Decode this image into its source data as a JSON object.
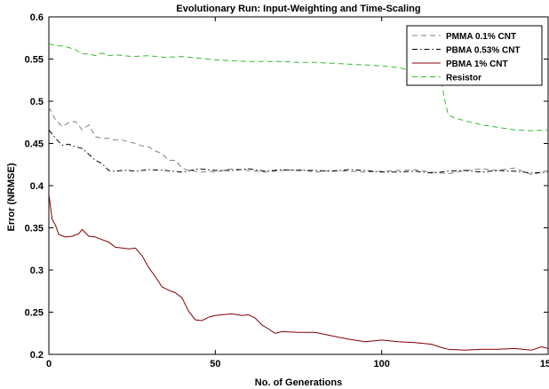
{
  "chart_data": {
    "type": "line",
    "title": "Evolutionary Run: Input-Weighting and Time-Scaling",
    "xlabel": "No. of Generations",
    "ylabel": "Error (NRMSE)",
    "xlim": [
      0,
      150
    ],
    "ylim": [
      0.2,
      0.6
    ],
    "xticks": [
      0,
      50,
      100,
      150
    ],
    "yticks": [
      0.2,
      0.25,
      0.3,
      0.35,
      0.4,
      0.45,
      0.5,
      0.55,
      0.6
    ],
    "xtick_labels": [
      "0",
      "50",
      "100",
      "150"
    ],
    "ytick_labels": [
      "0.2",
      "0.25",
      "0.3",
      "0.35",
      "0.4",
      "0.45",
      "0.5",
      "0.55",
      "0.6"
    ],
    "grid": false,
    "legend_position": "top-right",
    "series": [
      {
        "name": "PMMA 0.1% CNT",
        "color": "#808080",
        "dash": "dashed",
        "x": [
          0,
          2,
          4,
          6,
          8,
          10,
          12,
          14,
          16,
          18,
          20,
          22,
          24,
          26,
          28,
          30,
          32,
          34,
          36,
          38,
          40,
          42,
          44,
          46,
          48,
          50,
          55,
          60,
          65,
          70,
          75,
          80,
          85,
          90,
          95,
          100,
          105,
          110,
          115,
          120,
          125,
          130,
          135,
          140,
          145,
          150
        ],
        "y": [
          0.493,
          0.478,
          0.47,
          0.475,
          0.476,
          0.466,
          0.472,
          0.458,
          0.456,
          0.456,
          0.454,
          0.454,
          0.452,
          0.45,
          0.447,
          0.446,
          0.441,
          0.438,
          0.43,
          0.43,
          0.421,
          0.418,
          0.417,
          0.416,
          0.417,
          0.416,
          0.42,
          0.418,
          0.416,
          0.418,
          0.419,
          0.416,
          0.418,
          0.417,
          0.416,
          0.417,
          0.418,
          0.419,
          0.416,
          0.414,
          0.418,
          0.42,
          0.418,
          0.421,
          0.413,
          0.418
        ]
      },
      {
        "name": "PBMA 0.53% CNT",
        "color": "#000000",
        "dash": "dashdot",
        "x": [
          0,
          2,
          4,
          6,
          8,
          10,
          12,
          14,
          16,
          18,
          20,
          22,
          24,
          26,
          28,
          30,
          35,
          40,
          45,
          50,
          55,
          60,
          65,
          70,
          75,
          80,
          85,
          90,
          95,
          100,
          105,
          110,
          115,
          120,
          125,
          130,
          135,
          140,
          145,
          150
        ],
        "y": [
          0.466,
          0.456,
          0.448,
          0.449,
          0.446,
          0.444,
          0.437,
          0.43,
          0.426,
          0.418,
          0.417,
          0.418,
          0.418,
          0.417,
          0.418,
          0.419,
          0.418,
          0.416,
          0.42,
          0.418,
          0.418,
          0.42,
          0.417,
          0.419,
          0.418,
          0.418,
          0.417,
          0.419,
          0.418,
          0.416,
          0.416,
          0.417,
          0.415,
          0.417,
          0.418,
          0.416,
          0.418,
          0.417,
          0.415,
          0.416
        ]
      },
      {
        "name": "PBMA 1% CNT",
        "color": "#800000",
        "dash": "solid",
        "x": [
          0,
          1,
          2,
          3,
          5,
          7,
          9,
          10,
          12,
          14,
          16,
          18,
          20,
          22,
          24,
          26,
          28,
          30,
          32,
          34,
          36,
          38,
          40,
          42,
          44,
          46,
          48,
          50,
          52,
          55,
          58,
          60,
          62,
          64,
          66,
          68,
          70,
          75,
          80,
          85,
          90,
          95,
          100,
          105,
          110,
          115,
          118,
          120,
          125,
          130,
          135,
          140,
          145,
          148,
          150
        ],
        "y": [
          0.39,
          0.36,
          0.353,
          0.342,
          0.339,
          0.34,
          0.343,
          0.348,
          0.34,
          0.339,
          0.336,
          0.333,
          0.327,
          0.326,
          0.325,
          0.326,
          0.317,
          0.303,
          0.292,
          0.28,
          0.276,
          0.273,
          0.267,
          0.251,
          0.241,
          0.24,
          0.244,
          0.246,
          0.247,
          0.248,
          0.246,
          0.247,
          0.243,
          0.235,
          0.23,
          0.225,
          0.227,
          0.226,
          0.226,
          0.222,
          0.218,
          0.215,
          0.217,
          0.215,
          0.214,
          0.212,
          0.208,
          0.206,
          0.205,
          0.206,
          0.206,
          0.207,
          0.205,
          0.209,
          0.207
        ]
      },
      {
        "name": "Resistor",
        "color": "#33bb33",
        "dash": "dashed",
        "x": [
          0,
          2,
          5,
          8,
          10,
          12,
          14,
          16,
          18,
          20,
          25,
          30,
          35,
          40,
          45,
          50,
          55,
          60,
          65,
          70,
          75,
          80,
          85,
          90,
          95,
          100,
          105,
          108,
          110,
          112,
          114,
          116,
          118,
          119,
          120,
          122,
          125,
          130,
          135,
          140,
          145,
          150
        ],
        "y": [
          0.568,
          0.566,
          0.565,
          0.561,
          0.556,
          0.556,
          0.554,
          0.557,
          0.554,
          0.555,
          0.553,
          0.554,
          0.552,
          0.553,
          0.551,
          0.549,
          0.548,
          0.547,
          0.547,
          0.547,
          0.546,
          0.546,
          0.545,
          0.544,
          0.543,
          0.542,
          0.54,
          0.537,
          0.534,
          0.529,
          0.524,
          0.526,
          0.522,
          0.5,
          0.484,
          0.48,
          0.477,
          0.472,
          0.469,
          0.466,
          0.465,
          0.466
        ]
      }
    ]
  }
}
